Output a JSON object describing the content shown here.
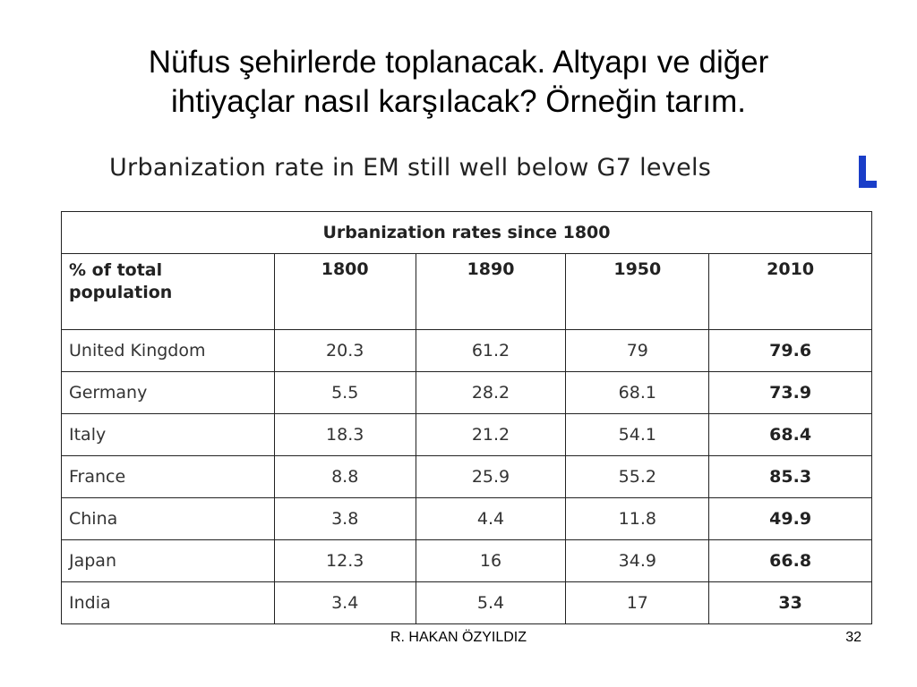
{
  "slide": {
    "title_line1": "Nüfus şehirlerde toplanacak. Altyapı ve diğer",
    "title_line2": "ihtiyaçlar nasıl karşılacak? Örneğin tarım.",
    "chart_heading": "Urbanization rate in EM still well below G7 levels",
    "logo_icon": "logo-fragment-icon",
    "accent_color": "#1a3ec8"
  },
  "table": {
    "caption": "Urbanization rates since 1800",
    "header_first_line1": "% of total",
    "header_first_line2": "population",
    "years": [
      "1800",
      "1890",
      "1950",
      "2010"
    ],
    "rows": [
      {
        "country": "United Kingdom",
        "values": [
          "20.3",
          "61.2",
          "79",
          "79.6"
        ]
      },
      {
        "country": "Germany",
        "values": [
          "5.5",
          "28.2",
          "68.1",
          "73.9"
        ]
      },
      {
        "country": "Italy",
        "values": [
          "18.3",
          "21.2",
          "54.1",
          "68.4"
        ]
      },
      {
        "country": "France",
        "values": [
          "8.8",
          "25.9",
          "55.2",
          "85.3"
        ]
      },
      {
        "country": "China",
        "values": [
          "3.8",
          "4.4",
          "11.8",
          "49.9"
        ]
      },
      {
        "country": "Japan",
        "values": [
          "12.3",
          "16",
          "34.9",
          "66.8"
        ]
      },
      {
        "country": "India",
        "values": [
          "3.4",
          "5.4",
          "17",
          "33"
        ]
      }
    ]
  },
  "footer": {
    "author": "R. HAKAN ÖZYILDIZ",
    "page_number": "32"
  }
}
